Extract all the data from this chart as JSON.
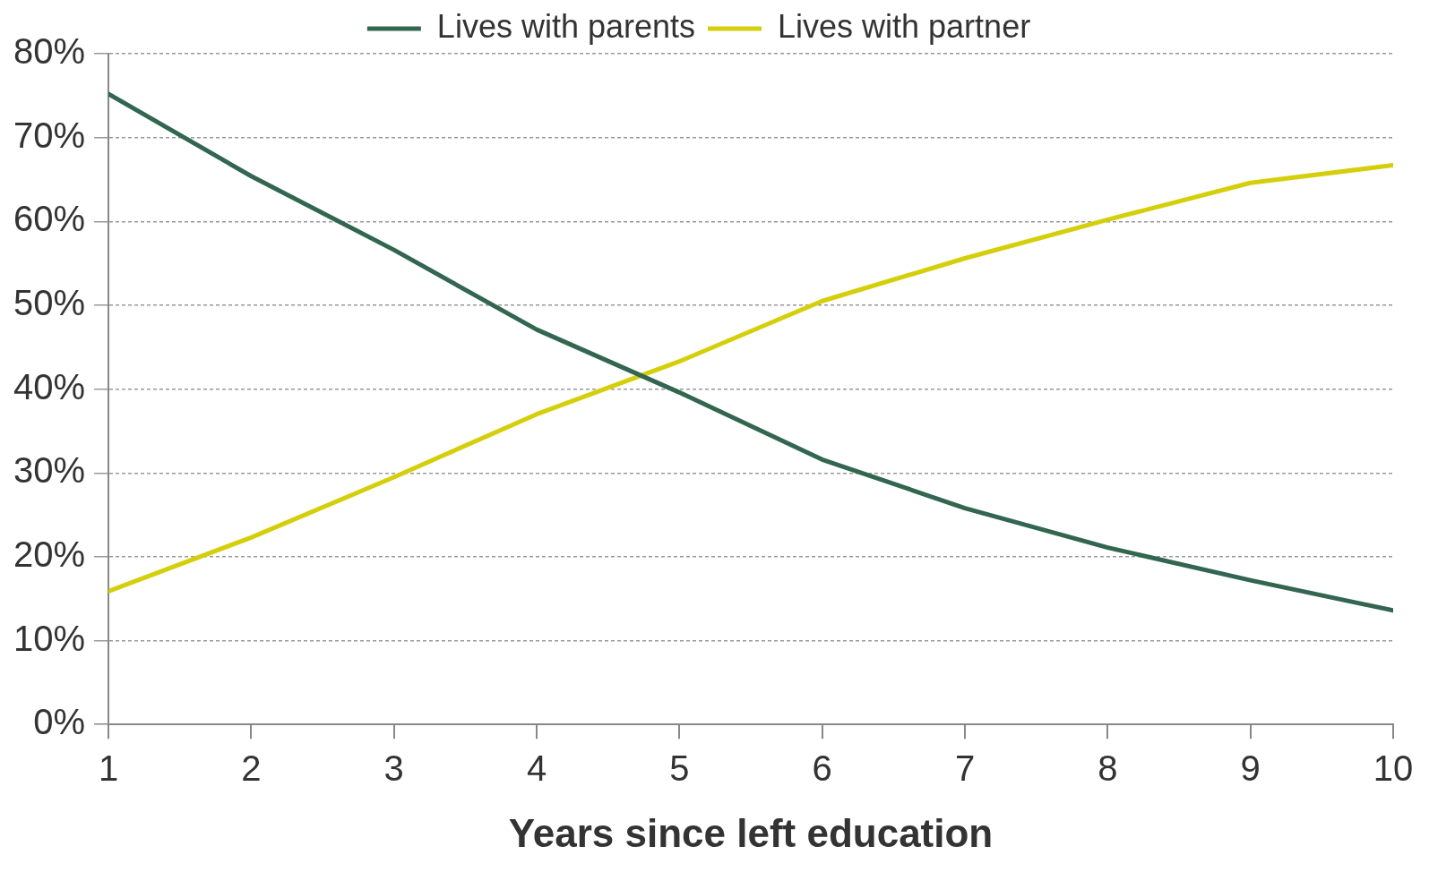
{
  "chart_data": {
    "type": "line",
    "xlabel": "Years since left education",
    "x": [
      1,
      2,
      3,
      4,
      5,
      6,
      7,
      8,
      9,
      10
    ],
    "series": [
      {
        "name": "Lives with parents",
        "color": "#336650",
        "values": [
          75.2,
          65.4,
          56.6,
          47.1,
          39.6,
          31.6,
          25.8,
          21.1,
          17.2,
          13.6
        ]
      },
      {
        "name": "Lives with partner",
        "color": "#d4cf0a",
        "values": [
          15.9,
          22.3,
          29.5,
          37.0,
          43.3,
          50.5,
          55.6,
          60.2,
          64.6,
          66.7
        ]
      }
    ],
    "xlim": [
      1,
      10
    ],
    "xticks": [
      1,
      2,
      3,
      4,
      5,
      6,
      7,
      8,
      9,
      10
    ],
    "ylim": [
      0,
      80
    ],
    "yticks": [
      {
        "value": 0,
        "label": "0%"
      },
      {
        "value": 10,
        "label": "10%"
      },
      {
        "value": 20,
        "label": "20%"
      },
      {
        "value": 30,
        "label": "30%"
      },
      {
        "value": 40,
        "label": "40%"
      },
      {
        "value": 50,
        "label": "50%"
      },
      {
        "value": 60,
        "label": "60%"
      },
      {
        "value": 70,
        "label": "70%"
      },
      {
        "value": 80,
        "label": "80%"
      }
    ],
    "grid": "y",
    "legend": "top",
    "marker": "none",
    "line_style": "solid"
  }
}
